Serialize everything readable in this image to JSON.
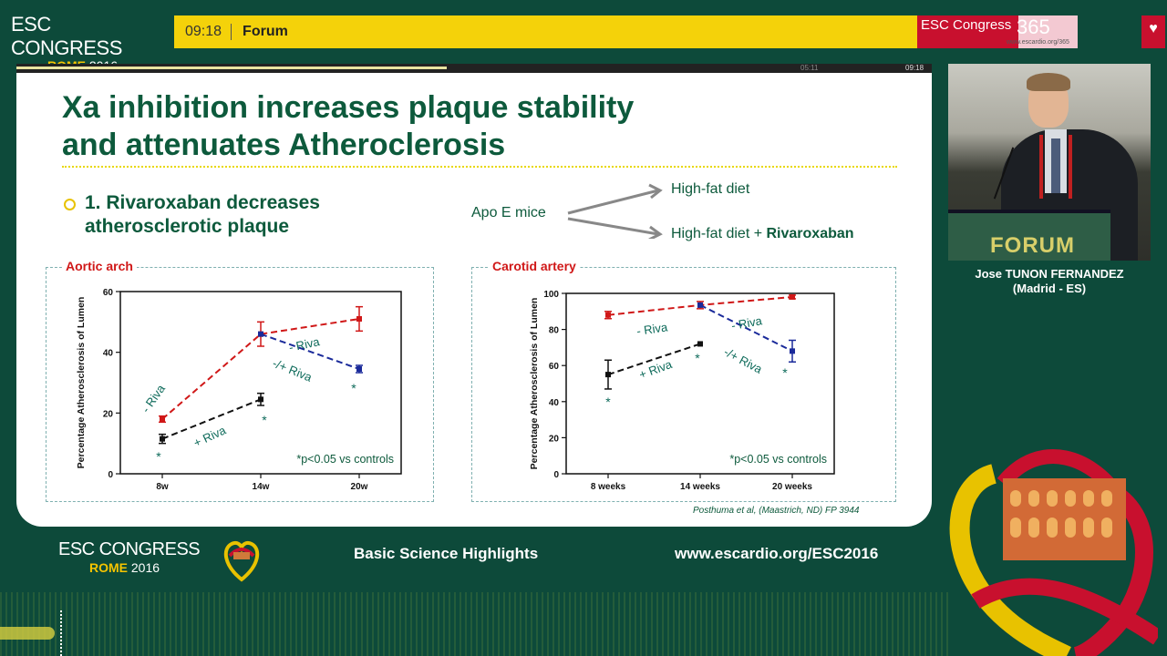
{
  "header": {
    "logo_line1": "ESC CONGRESS",
    "logo_rome": "ROME",
    "logo_year": "2016",
    "time": "09:18",
    "title": "Forum",
    "brand_text": "ESC Congress",
    "brand_number": "365",
    "brand_url": "www.escardio.org/365"
  },
  "slide": {
    "progress_fraction": 0.47,
    "progress_time_left": "05:11",
    "progress_time_right": "09:18",
    "title_line1": "Xa inhibition increases plaque stability",
    "title_line2": "and attenuates Atheroclerosis",
    "bullet_line1": "1. Rivaroxaban decreases",
    "bullet_line2": "atherosclerotic plaque",
    "apo_label": "Apo E mice",
    "hfd_label": "High-fat diet",
    "hfd_riva_prefix": "High-fat diet + ",
    "hfd_riva_bold": "Rivaroxaban",
    "citation": "Posthuma et al, (Maastrich, ND) FP 3944"
  },
  "chart_data": [
    {
      "type": "line",
      "title": "Aortic arch",
      "ylabel": "Percentage Atherosclerosis of Lumen",
      "categories": [
        "8w",
        "14w",
        "20w"
      ],
      "ylim": [
        0,
        60
      ],
      "yticks": [
        "0",
        "20",
        "40",
        "60"
      ],
      "annotation": "*p<0.05 vs controls",
      "series": [
        {
          "name": "- Riva",
          "color": "#d01818",
          "x": [
            "8w",
            "14w",
            "20w"
          ],
          "values": [
            18,
            46,
            51
          ],
          "err": [
            1,
            4,
            4
          ]
        },
        {
          "name": "+ Riva",
          "color": "#111111",
          "x": [
            "8w",
            "14w"
          ],
          "values": [
            11.5,
            24.5
          ],
          "err": [
            1.5,
            2
          ]
        },
        {
          "name": "-/+ Riva",
          "color": "#1a2a9a",
          "x": [
            "14w",
            "20w"
          ],
          "values": [
            46,
            34.5
          ],
          "err": [
            0,
            1.2
          ]
        }
      ],
      "labels": [
        "- Riva",
        "+ Riva",
        "- Riva",
        "-/+ Riva"
      ],
      "stars": [
        "*",
        "*",
        "*"
      ]
    },
    {
      "type": "line",
      "title": "Carotid artery",
      "ylabel": "Percentage Atherosclerosis of Lumen",
      "categories": [
        "8 weeks",
        "14 weeks",
        "20 weeks"
      ],
      "ylim": [
        0,
        100
      ],
      "yticks": [
        "0",
        "20",
        "40",
        "60",
        "80",
        "100"
      ],
      "annotation": "*p<0.05 vs controls",
      "series": [
        {
          "name": "- Riva",
          "color": "#d01818",
          "x": [
            "8 weeks",
            "14 weeks",
            "20 weeks"
          ],
          "values": [
            88,
            93.5,
            98
          ],
          "err": [
            2,
            2,
            1
          ]
        },
        {
          "name": "+ Riva",
          "color": "#111111",
          "x": [
            "8 weeks",
            "14 weeks"
          ],
          "values": [
            55,
            72
          ],
          "err": [
            8,
            0
          ]
        },
        {
          "name": "-/+ Riva",
          "color": "#1a2a9a",
          "x": [
            "14 weeks",
            "20 weeks"
          ],
          "values": [
            93.5,
            68
          ],
          "err": [
            0,
            6
          ]
        }
      ],
      "labels": [
        "- Riva",
        "+ Riva",
        "- Riva",
        "-/+ Riva"
      ],
      "stars": [
        "*",
        "*",
        "*"
      ]
    }
  ],
  "speaker": {
    "name": "Jose TUNON FERNANDEZ",
    "affiliation": "(Madrid - ES)",
    "podium_text": "FORUM"
  },
  "footer": {
    "logo_line1": "ESC CONGRESS",
    "logo_rome": "ROME",
    "logo_year": "2016",
    "center_text": "Basic Science Highlights",
    "url": "www.escardio.org/ESC2016"
  },
  "colors": {
    "background": "#0d4a3a",
    "header_yellow": "#f4d20a",
    "brand_red": "#c8102e",
    "slide_title": "#0d5a3c"
  }
}
